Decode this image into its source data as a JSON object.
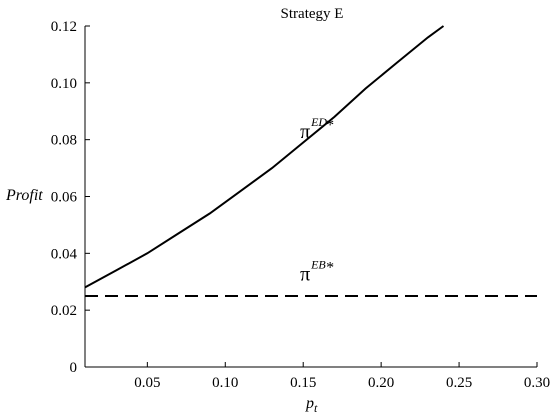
{
  "chart_data": {
    "type": "line",
    "title": "Strategy E",
    "xlabel": "p",
    "xlabel_sub": "t",
    "ylabel": "Profit",
    "xlim": [
      0.01,
      0.3
    ],
    "ylim": [
      0,
      0.12
    ],
    "xticks": [
      0.05,
      0.1,
      0.15,
      0.2,
      0.25,
      0.3
    ],
    "xtick_labels": [
      "0.05",
      "0.10",
      "0.15",
      "0.20",
      "0.25",
      "0.30"
    ],
    "yticks": [
      0,
      0.02,
      0.04,
      0.06,
      0.08,
      0.1,
      0.12
    ],
    "ytick_labels": [
      "0",
      "0.02",
      "0.04",
      "0.06",
      "0.08",
      "0.10",
      "0.12"
    ],
    "grid": false,
    "series": [
      {
        "name": "π ED*",
        "style": "solid",
        "color": "#000000",
        "x": [
          0.01,
          0.03,
          0.05,
          0.07,
          0.09,
          0.11,
          0.13,
          0.15,
          0.17,
          0.19,
          0.21,
          0.23,
          0.24
        ],
        "y": [
          0.028,
          0.034,
          0.04,
          0.047,
          0.054,
          0.062,
          0.07,
          0.079,
          0.088,
          0.098,
          0.107,
          0.116,
          0.12
        ]
      },
      {
        "name": "π EB*",
        "style": "dashed",
        "color": "#000000",
        "x": [
          0.01,
          0.3
        ],
        "y": [
          0.025,
          0.025
        ]
      }
    ],
    "annotations": [
      {
        "main": "π",
        "sup": "ED",
        "star": "*",
        "x": 0.148,
        "y": 0.0805
      },
      {
        "main": "π",
        "sup": "EB",
        "star": "*",
        "x": 0.148,
        "y": 0.0305
      }
    ]
  }
}
